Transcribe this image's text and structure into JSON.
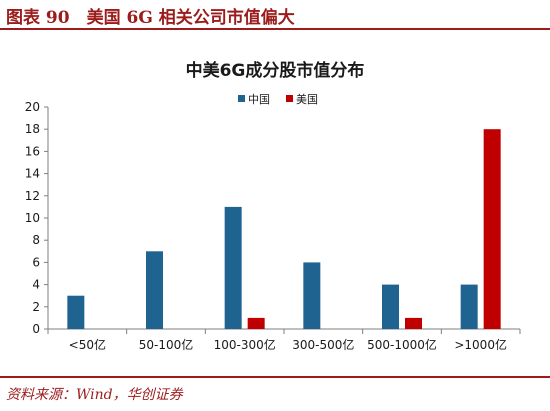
{
  "header": {
    "title": "图表 90　美国 6G 相关公司市值偏大"
  },
  "footer": {
    "source": "资料来源：Wind，华创证券"
  },
  "chart_data": {
    "type": "bar",
    "title": "中美6G成分股市值分布",
    "xlabel": "",
    "ylabel": "",
    "categories": [
      "<50亿",
      "50-100亿",
      "100-300亿",
      "300-500亿",
      "500-1000亿",
      ">1000亿"
    ],
    "series": [
      {
        "name": "中国",
        "color": "#1f6391",
        "values": [
          3,
          7,
          11,
          6,
          4,
          4
        ]
      },
      {
        "name": "美国",
        "color": "#c00000",
        "values": [
          0,
          0,
          1,
          0,
          1,
          18
        ]
      }
    ],
    "ylim": [
      0,
      20
    ],
    "yticks": [
      0,
      2,
      4,
      6,
      8,
      10,
      12,
      14,
      16,
      18,
      20
    ],
    "legend": "top-center",
    "grid": false
  }
}
